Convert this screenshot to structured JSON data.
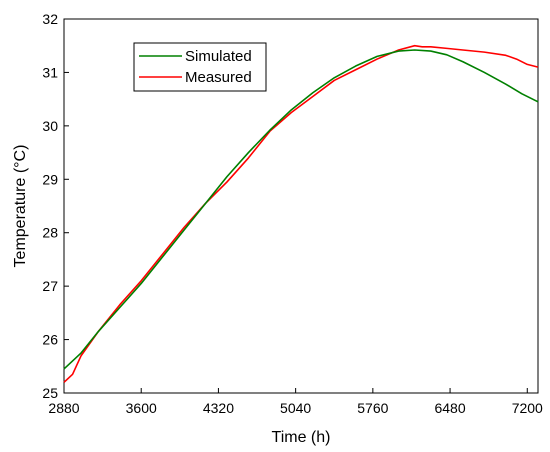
{
  "chart_data": {
    "type": "line",
    "title": "",
    "xlabel": "Time (h)",
    "ylabel": "Temperature (°C)",
    "xlim": [
      2880,
      7300
    ],
    "ylim": [
      25,
      32
    ],
    "xticks": [
      2880,
      3600,
      4320,
      5040,
      5760,
      6480,
      7200
    ],
    "yticks": [
      25,
      26,
      27,
      28,
      29,
      30,
      31,
      32
    ],
    "grid": false,
    "legend_position": "top-left",
    "series": [
      {
        "name": "Simulated",
        "color": "#008000",
        "x": [
          2880,
          3040,
          3200,
          3400,
          3600,
          3800,
          4000,
          4200,
          4400,
          4600,
          4800,
          5000,
          5200,
          5400,
          5600,
          5800,
          6000,
          6150,
          6300,
          6450,
          6600,
          6800,
          7000,
          7150,
          7300
        ],
        "y": [
          25.45,
          25.75,
          26.15,
          26.6,
          27.05,
          27.55,
          28.05,
          28.55,
          29.05,
          29.5,
          29.92,
          30.3,
          30.62,
          30.9,
          31.12,
          31.3,
          31.4,
          31.42,
          31.4,
          31.33,
          31.2,
          31.0,
          30.78,
          30.6,
          30.45
        ]
      },
      {
        "name": "Measured",
        "color": "#ff0000",
        "x": [
          2880,
          2960,
          3040,
          3200,
          3400,
          3600,
          3800,
          4000,
          4200,
          4400,
          4600,
          4800,
          5000,
          5200,
          5400,
          5600,
          5800,
          6000,
          6150,
          6220,
          6300,
          6450,
          6600,
          6800,
          7000,
          7100,
          7200,
          7300
        ],
        "y": [
          25.2,
          25.35,
          25.7,
          26.15,
          26.65,
          27.1,
          27.6,
          28.1,
          28.55,
          28.95,
          29.4,
          29.9,
          30.25,
          30.55,
          30.85,
          31.05,
          31.25,
          31.42,
          31.5,
          31.48,
          31.48,
          31.45,
          31.42,
          31.38,
          31.32,
          31.25,
          31.15,
          31.1
        ]
      }
    ]
  }
}
